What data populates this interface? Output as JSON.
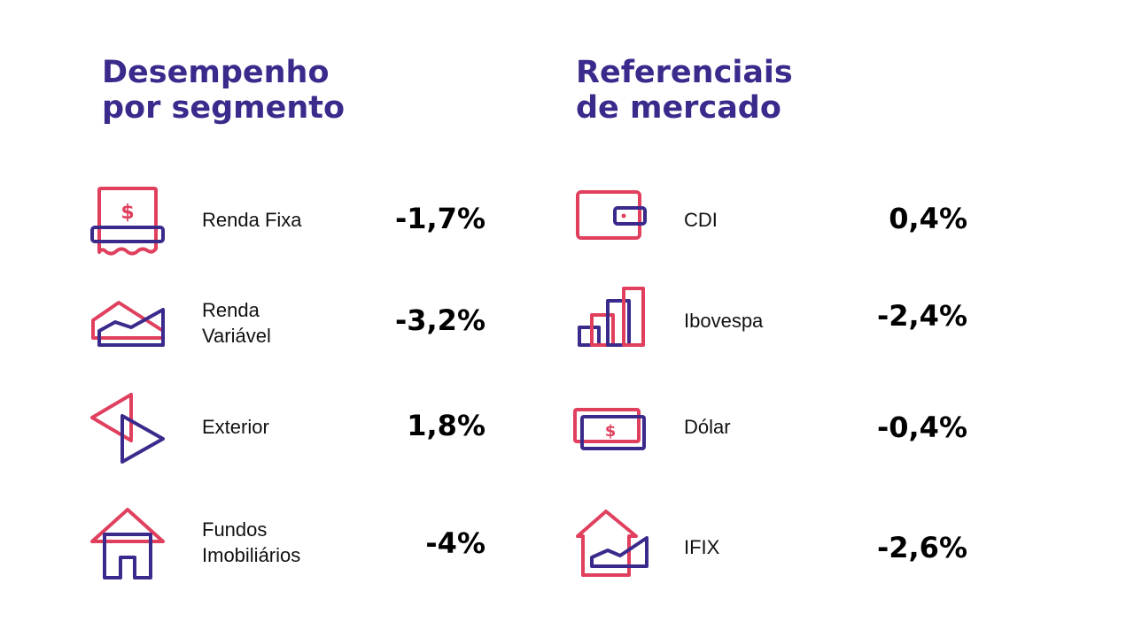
{
  "colors": {
    "title": "#3b2a8c",
    "accent_red": "#e0405e",
    "accent_purple": "#3b2a8c"
  },
  "left": {
    "title_line1": "Desempenho",
    "title_line2": "por segmento",
    "items": [
      {
        "icon": "receipt-dollar-icon",
        "label_line1": "Renda Fixa",
        "label_line2": "",
        "value": "-1,7%"
      },
      {
        "icon": "area-chart-icon",
        "label_line1": "Renda",
        "label_line2": "Variável",
        "value": "-3,2%"
      },
      {
        "icon": "arrows-icon",
        "label_line1": "Exterior",
        "label_line2": "",
        "value": "1,8%"
      },
      {
        "icon": "house-icon",
        "label_line1": "Fundos",
        "label_line2": "Imobiliários",
        "value": "-4%"
      }
    ]
  },
  "right": {
    "title_line1": "Referenciais",
    "title_line2": "de mercado",
    "items": [
      {
        "icon": "wallet-icon",
        "label": "CDI",
        "value": "0,4%"
      },
      {
        "icon": "bar-chart-icon",
        "label": "Ibovespa",
        "value": "-2,4%"
      },
      {
        "icon": "banknotes-icon",
        "label": "Dólar",
        "value": "-0,4%"
      },
      {
        "icon": "house-chart-icon",
        "label": "IFIX",
        "value": "-2,6%"
      }
    ]
  }
}
